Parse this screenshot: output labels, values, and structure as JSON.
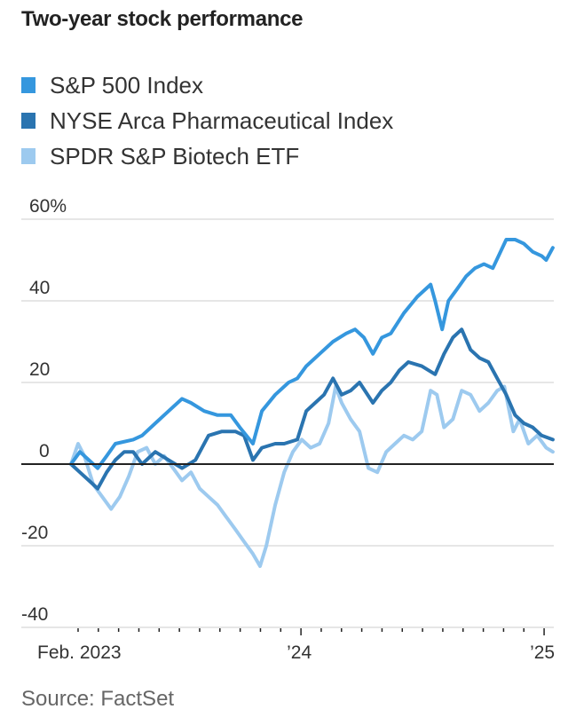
{
  "chart_data": {
    "type": "line",
    "title": "Two-year stock performance",
    "source": "Source: FactSet",
    "xlabel": "",
    "ylabel": "",
    "y_unit": "%",
    "ylim": [
      -40,
      60
    ],
    "y_ticks": [
      {
        "value": 60,
        "label": "60%"
      },
      {
        "value": 40,
        "label": "40"
      },
      {
        "value": 20,
        "label": "20"
      },
      {
        "value": 0,
        "label": "0"
      },
      {
        "value": -20,
        "label": "-20"
      },
      {
        "value": -40,
        "label": "-40"
      }
    ],
    "x_unit": "months since Jan 1, 2023",
    "xlim": [
      0.65,
      24.43
    ],
    "x_tick_labels": [
      {
        "month": 1,
        "label": "Feb. 2023"
      },
      {
        "month": 12,
        "label": "’24"
      },
      {
        "month": 24,
        "label": "’25"
      }
    ],
    "x_minor_ticks_months": [
      1,
      2,
      3,
      4,
      5,
      6,
      7,
      8,
      9,
      10,
      11,
      12,
      13,
      14,
      15,
      16,
      17,
      18,
      19,
      20,
      21,
      22,
      23,
      24
    ],
    "grid": true,
    "zero_line": true,
    "legend_position": "top-left",
    "series": [
      {
        "name": "S&P 500 Index",
        "color": "#3597de",
        "x": [
          0.65,
          1.09,
          1.53,
          1.97,
          2.41,
          2.84,
          3.72,
          4.16,
          4.81,
          5.47,
          6.13,
          6.57,
          7.22,
          7.88,
          8.54,
          8.98,
          9.63,
          10.07,
          10.73,
          11.39,
          11.82,
          12.26,
          12.92,
          13.58,
          14.23,
          14.67,
          15.11,
          15.55,
          15.99,
          16.43,
          17.08,
          17.74,
          18.4,
          18.62,
          18.97,
          19.28,
          19.72,
          20.15,
          20.59,
          21.03,
          21.47,
          22.13,
          22.57,
          23.0,
          23.44,
          23.88,
          24.1,
          24.43
        ],
        "values": [
          0,
          3,
          1,
          -1,
          2,
          5,
          6,
          7,
          10,
          13,
          16,
          15,
          13,
          12,
          12,
          9,
          5,
          13,
          17,
          20,
          21,
          24,
          27,
          30,
          32,
          33,
          31,
          27,
          31,
          32,
          37,
          41,
          44,
          40,
          33,
          40,
          43,
          46,
          48,
          49,
          48,
          55,
          55,
          54,
          52,
          51,
          50,
          53
        ]
      },
      {
        "name": "NYSE Arca Pharmaceutical Index",
        "color": "#2a74b0",
        "x": [
          0.65,
          1.09,
          1.53,
          1.97,
          2.41,
          2.84,
          3.28,
          3.72,
          4.16,
          4.81,
          5.47,
          6.13,
          6.79,
          7.44,
          8.1,
          8.76,
          9.19,
          9.63,
          10.07,
          10.73,
          11.17,
          11.82,
          12.26,
          12.7,
          13.14,
          13.58,
          14.01,
          14.45,
          14.89,
          15.55,
          15.99,
          16.43,
          16.86,
          17.3,
          17.96,
          18.62,
          19.06,
          19.5,
          19.93,
          20.37,
          20.81,
          21.25,
          21.69,
          22.13,
          22.57,
          23.0,
          23.44,
          23.88,
          24.43
        ],
        "values": [
          0,
          -2,
          -4,
          -6,
          -2,
          1,
          3,
          3,
          0,
          3,
          1,
          -1,
          1,
          7,
          8,
          8,
          7,
          1,
          4,
          5,
          5,
          6,
          13,
          15,
          17,
          21,
          17,
          18,
          20,
          15,
          18,
          20,
          23,
          25,
          24,
          22,
          27,
          31,
          33,
          28,
          26,
          25,
          21,
          17,
          12,
          10,
          9,
          7,
          6
        ]
      },
      {
        "name": "SPDR S&P Biotech ETF",
        "color": "#9dcaef",
        "x": [
          0.65,
          1.0,
          1.31,
          1.75,
          2.19,
          2.63,
          3.06,
          3.5,
          3.94,
          4.38,
          4.81,
          5.25,
          5.69,
          6.13,
          6.57,
          7.0,
          7.44,
          7.88,
          8.32,
          8.76,
          9.19,
          9.63,
          9.98,
          10.29,
          10.73,
          11.17,
          11.6,
          12.04,
          12.48,
          12.92,
          13.36,
          13.71,
          14.01,
          14.45,
          14.89,
          15.33,
          15.77,
          16.21,
          16.64,
          17.08,
          17.52,
          17.96,
          18.4,
          18.71,
          19.06,
          19.5,
          19.93,
          20.37,
          20.81,
          21.25,
          21.69,
          22.04,
          22.48,
          22.79,
          23.22,
          23.66,
          24.1,
          24.43
        ],
        "values": [
          0,
          5,
          2,
          -5,
          -8,
          -11,
          -8,
          -3,
          3,
          4,
          0,
          2,
          -1,
          -4,
          -2,
          -6,
          -8,
          -10,
          -13,
          -16,
          -19,
          -22,
          -25,
          -20,
          -10,
          -2,
          3,
          6,
          4,
          5,
          10,
          19,
          15,
          11,
          8,
          -1,
          -2,
          3,
          5,
          7,
          6,
          8,
          18,
          17,
          9,
          11,
          18,
          17,
          13,
          15,
          18,
          19,
          8,
          11,
          5,
          7,
          4,
          3
        ]
      }
    ]
  }
}
